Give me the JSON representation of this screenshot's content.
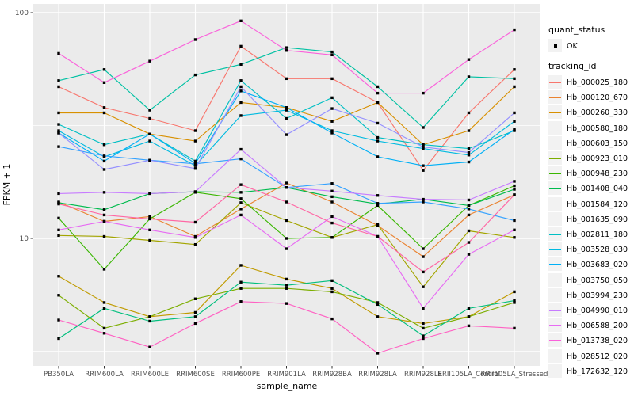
{
  "colors": {
    "panel_bg": "#EBEBEB",
    "grid": "#FFFFFF",
    "tick": "#333333",
    "tick_label": "#4D4D4D",
    "point": "#000000",
    "legend_key_bg": "#F2F2F2"
  },
  "legend": {
    "quant_status": {
      "title": "quant_status",
      "items": [
        {
          "label": "OK"
        }
      ]
    },
    "tracking_id": {
      "title": "tracking_id"
    }
  },
  "chart_data": {
    "type": "line",
    "title": "",
    "xlabel": "sample_name",
    "ylabel": "FPKM + 1",
    "yscale": "log10",
    "ylim": [
      2.7,
      109
    ],
    "y_major": [
      10,
      100
    ],
    "y_minor": [
      3.162,
      31.62
    ],
    "ytick_labels": [
      {
        "value": 100,
        "label": "100"
      },
      {
        "value": 10,
        "label": "10"
      }
    ],
    "grid": "on",
    "legend_position": "right",
    "categories": [
      "PB350LA",
      "RRIM600LA",
      "RRIM600LE",
      "RRIM600SE",
      "RRIM600PE",
      "RRIM901LA",
      "RRIM928BA",
      "RRIM928LA",
      "RRIM928LE",
      "RRII105LA_Control",
      "RRII105LA_Stressed"
    ],
    "quant_status_all": "OK",
    "series": [
      {
        "name": "Hb_000025_180",
        "color": "#F8766D",
        "values": [
          47,
          38,
          34,
          30,
          71,
          51,
          51,
          40,
          20,
          36,
          56
        ]
      },
      {
        "name": "Hb_000120_670",
        "color": "#EA8331",
        "values": [
          14.5,
          11.9,
          12.5,
          10.2,
          13.5,
          17.6,
          14.5,
          11.4,
          8.3,
          12.7,
          15.6
        ]
      },
      {
        "name": "Hb_000260_330",
        "color": "#D89000",
        "values": [
          36,
          36,
          29,
          27,
          40,
          38,
          33,
          40,
          26,
          30,
          47
        ]
      },
      {
        "name": "Hb_000580_180",
        "color": "#C09B00",
        "values": [
          6.8,
          5.2,
          4.5,
          4.7,
          7.6,
          6.6,
          6.0,
          4.5,
          4.2,
          4.5,
          5.8
        ]
      },
      {
        "name": "Hb_000603_150",
        "color": "#A3A500",
        "values": [
          10.3,
          10.2,
          9.8,
          9.4,
          14.4,
          12.0,
          10.1,
          11.5,
          6.1,
          10.8,
          10.1
        ]
      },
      {
        "name": "Hb_000923_010",
        "color": "#7CAE00",
        "values": [
          5.6,
          4.0,
          4.5,
          5.4,
          6.0,
          6.0,
          5.8,
          5.2,
          4.0,
          4.5,
          5.2
        ]
      },
      {
        "name": "Hb_000948_230",
        "color": "#39B600",
        "values": [
          12.3,
          7.3,
          12.2,
          16.0,
          15.0,
          10.0,
          10.1,
          14.0,
          9.0,
          14.0,
          17.1
        ]
      },
      {
        "name": "Hb_001408_040",
        "color": "#00BB4E",
        "values": [
          14.4,
          13.4,
          15.8,
          16.1,
          16.0,
          16.8,
          15.3,
          14.2,
          14.9,
          14.0,
          16.5
        ]
      },
      {
        "name": "Hb_001584_120",
        "color": "#00BF7D",
        "values": [
          3.6,
          4.9,
          4.3,
          4.5,
          6.4,
          6.2,
          6.5,
          5.1,
          3.7,
          4.9,
          5.3
        ]
      },
      {
        "name": "Hb_001635_090",
        "color": "#00C1A3",
        "values": [
          50,
          56,
          37,
          53,
          59,
          70,
          67,
          47,
          31,
          52,
          51
        ]
      },
      {
        "name": "Hb_002811_180",
        "color": "#00BFC4",
        "values": [
          32,
          26,
          29,
          22,
          50,
          34,
          42,
          28,
          26,
          25,
          30
        ]
      },
      {
        "name": "Hb_003528_030",
        "color": "#00BAE0",
        "values": [
          30,
          23,
          27,
          21,
          35,
          37,
          30,
          27,
          25,
          23.4,
          33
        ]
      },
      {
        "name": "Hb_003683_020",
        "color": "#00B0F6",
        "values": [
          29.3,
          22,
          29,
          21.5,
          45,
          38,
          29.3,
          23,
          21,
          21.8,
          30.4
        ]
      },
      {
        "name": "Hb_003750_050",
        "color": "#35A2FF",
        "values": [
          25.5,
          23.2,
          22.2,
          21.4,
          22.5,
          16.8,
          17.5,
          14.3,
          14.5,
          13.5,
          12.0
        ]
      },
      {
        "name": "Hb_003994_230",
        "color": "#9590FF",
        "values": [
          29.3,
          20.2,
          22.2,
          20.4,
          47,
          28.8,
          37.6,
          32.4,
          25.4,
          24,
          36
        ]
      },
      {
        "name": "Hb_004990_010",
        "color": "#C77CFF",
        "values": [
          15.8,
          16.0,
          15.8,
          16.1,
          24.8,
          16.8,
          16.2,
          15.5,
          14.9,
          14.8,
          17.9
        ]
      },
      {
        "name": "Hb_006588_200",
        "color": "#E76BF3",
        "values": [
          10.9,
          11.9,
          10.9,
          10.1,
          12.7,
          9.0,
          12.5,
          10.2,
          4.9,
          8.5,
          10.9
        ]
      },
      {
        "name": "Hb_013738_020",
        "color": "#FA62DB",
        "values": [
          66,
          49,
          61,
          76,
          92,
          68,
          65,
          44,
          44,
          62,
          84
        ]
      },
      {
        "name": "Hb_028512_020",
        "color": "#FF61C3",
        "values": [
          4.35,
          3.8,
          3.3,
          4.2,
          5.25,
          5.15,
          4.4,
          3.1,
          3.6,
          4.1,
          4.0
        ]
      },
      {
        "name": "Hb_172632_120",
        "color": "#FF67A4",
        "values": [
          14.2,
          12.7,
          12.2,
          11.8,
          17.3,
          14.5,
          11.7,
          10.2,
          7.1,
          9.6,
          15.6
        ]
      }
    ]
  }
}
